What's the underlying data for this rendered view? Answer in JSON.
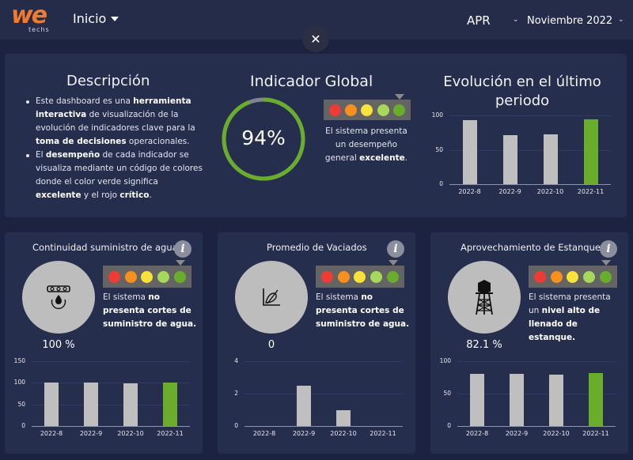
{
  "header": {
    "logo_main": "we",
    "logo_sub": "techs",
    "nav_label": "Inicio",
    "org_select": "APR",
    "period_select": "Noviembre 2022",
    "close_icon": "✕"
  },
  "description": {
    "title": "Descripción",
    "bullet1": {
      "t1": "Este dashboard es una ",
      "b1": "herramienta interactiva",
      "t2": " de visualización de la evolución de indicadores clave para la ",
      "b2": "toma de decisiones",
      "t3": " operacionales."
    },
    "bullet2": {
      "t1": "El ",
      "b1": "desempeño",
      "t2": " de cada indicador se visualiza mediante un código de colores donde el color verde significa ",
      "b2": "excelente",
      "t3": " y el rojo ",
      "b3": "crítico",
      "t4": "."
    }
  },
  "global_indicator": {
    "title": "Indicador Global",
    "value": "94%",
    "percent": 94,
    "text_pre": "El sistema presenta un desempeño general ",
    "text_bold": "excelente",
    "text_post": ".",
    "level": 5
  },
  "evolution": {
    "title": "Evolución en el último periodo"
  },
  "semaforo_colors": [
    "#ef3b36",
    "#f7901e",
    "#f9e23a",
    "#a6d85d",
    "#6aad2c"
  ],
  "colors": {
    "bar_gray": "#bfbfbf",
    "bar_green": "#6aad2c",
    "gauge_green": "#6aad2c",
    "gauge_gray": "#7f8595",
    "logo_orange": "#f07a2e"
  },
  "cards": [
    {
      "title": "Continuidad suministro de agua",
      "icon": "water-supply-icon",
      "value": "100 %",
      "text_pre": "El sistema ",
      "text_bold": "no presenta cortes de suministro de agua.",
      "text_post": "",
      "level": 5
    },
    {
      "title": "Promedio de Vaciados",
      "icon": "chart-empty-icon",
      "value": "0",
      "text_pre": "El sistema ",
      "text_bold": "no presenta cortes de suministro de agua.",
      "text_post": "",
      "level": 5
    },
    {
      "title": "Aprovechamiento de Estanque",
      "icon": "water-tower-icon",
      "value": "82.1 %",
      "text_pre": "El sistema presenta un ",
      "text_bold": "nivel alto de llenado de estanque.",
      "text_post": "",
      "level": 5
    }
  ],
  "chart_data": [
    {
      "type": "bar",
      "title": "Evolución en el último periodo",
      "categories": [
        "2022-8",
        "2022-9",
        "2022-10",
        "2022-11"
      ],
      "values": [
        93,
        71,
        72,
        94
      ],
      "yticks": [
        0,
        50,
        100
      ],
      "ylim": [
        0,
        100
      ],
      "highlight_last": true,
      "grid": true
    },
    {
      "type": "bar",
      "title": "Continuidad suministro de agua",
      "categories": [
        "2022-8",
        "2022-9",
        "2022-10",
        "2022-11"
      ],
      "values": [
        100,
        100,
        99,
        100
      ],
      "yticks": [
        0,
        50,
        100,
        150
      ],
      "ylim": [
        0,
        150
      ],
      "highlight_last": true,
      "grid": true
    },
    {
      "type": "bar",
      "title": "Promedio de Vaciados",
      "categories": [
        "2022-8",
        "2022-9",
        "2022-10",
        "2022-11"
      ],
      "values": [
        0,
        2.5,
        1,
        0
      ],
      "yticks": [
        0,
        2,
        4
      ],
      "ylim": [
        0,
        4
      ],
      "highlight_last": true,
      "grid": true
    },
    {
      "type": "bar",
      "title": "Aprovechamiento de Estanque",
      "categories": [
        "2022-8",
        "2022-9",
        "2022-10",
        "2022-11"
      ],
      "values": [
        81,
        81,
        79,
        82
      ],
      "yticks": [
        0,
        50,
        100
      ],
      "ylim": [
        0,
        100
      ],
      "highlight_last": true,
      "grid": true
    }
  ]
}
